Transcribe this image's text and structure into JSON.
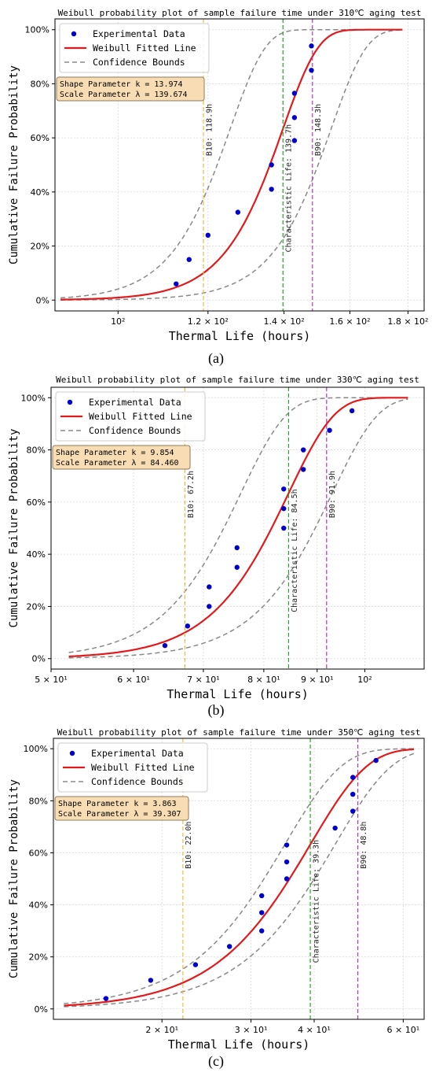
{
  "figure": {
    "labels": [
      "(a)",
      "(b)",
      "(c)"
    ]
  },
  "legend": {
    "experimental": "Experimental Data",
    "fitted": "Weibull Fitted Line",
    "bounds": "Confidence Bounds"
  },
  "colors": {
    "points": "#0000cc",
    "fit": "#e31a1c",
    "bounds": "#888888",
    "b10": "#f5b942",
    "char": "#2ca02c",
    "b90": "#c030c0",
    "param_box": "#f8ddb4"
  },
  "chart_data": [
    {
      "type": "scatter",
      "title": "Weibull probability plot of sample failure time under 310℃ aging test",
      "xlabel": "Thermal Life (hours)",
      "ylabel": "Cumulative Failure Probability",
      "x_scale": "log",
      "xlim": [
        88,
        186
      ],
      "ylim": [
        -0.04,
        1.04
      ],
      "xticks": [
        100,
        120,
        140,
        160,
        180
      ],
      "xtick_labels": [
        "10²",
        "1.2 × 10²",
        "1.4 × 10²",
        "1.6 × 10²",
        "1.8 × 10²"
      ],
      "yticks": [
        0,
        0.2,
        0.4,
        0.6,
        0.8,
        1.0
      ],
      "ytick_labels": [
        "0%",
        "20%",
        "40%",
        "60%",
        "80%",
        "100%"
      ],
      "grid": true,
      "legend_position": "top-left",
      "points": [
        {
          "x": 112.5,
          "y": 0.06
        },
        {
          "x": 115.5,
          "y": 0.15
        },
        {
          "x": 120.0,
          "y": 0.24
        },
        {
          "x": 127.5,
          "y": 0.325
        },
        {
          "x": 136.5,
          "y": 0.41
        },
        {
          "x": 136.5,
          "y": 0.5
        },
        {
          "x": 143.0,
          "y": 0.59
        },
        {
          "x": 143.0,
          "y": 0.675
        },
        {
          "x": 143.0,
          "y": 0.765
        },
        {
          "x": 148.0,
          "y": 0.85
        },
        {
          "x": 148.0,
          "y": 0.94
        }
      ],
      "shape_k": 13.974,
      "scale_lambda": 139.674,
      "fit_x_range": [
        89,
        178
      ],
      "bounds_scale": [
        125.5,
        154.0
      ],
      "param_lines": [
        "Shape Parameter k = 13.974",
        "Scale Parameter  λ = 139.674"
      ],
      "vlines": [
        {
          "kind": "b10",
          "x": 118.9,
          "label": "B10: 118.9h"
        },
        {
          "kind": "char",
          "x": 139.7,
          "label": "Characteristic Life: 139.7h"
        },
        {
          "kind": "b90",
          "x": 148.3,
          "label": "B90: 148.3h"
        }
      ]
    },
    {
      "type": "scatter",
      "title": "Weibull probability plot of sample failure time under 330℃ aging test",
      "xlabel": "Thermal Life (hours)",
      "ylabel": "Cumulative Failure Probability",
      "x_scale": "log",
      "xlim": [
        50,
        114
      ],
      "ylim": [
        -0.04,
        1.04
      ],
      "xticks": [
        50,
        60,
        70,
        80,
        90,
        100
      ],
      "xtick_labels": [
        "5 × 10¹",
        "6 × 10¹",
        "7 × 10¹",
        "8 × 10¹",
        "9 × 10¹",
        "10²"
      ],
      "yticks": [
        0,
        0.2,
        0.4,
        0.6,
        0.8,
        1.0
      ],
      "ytick_labels": [
        "0%",
        "20%",
        "40%",
        "60%",
        "80%",
        "100%"
      ],
      "grid": true,
      "legend_position": "top-left",
      "points": [
        {
          "x": 64.3,
          "y": 0.05
        },
        {
          "x": 67.6,
          "y": 0.125
        },
        {
          "x": 70.9,
          "y": 0.2
        },
        {
          "x": 70.9,
          "y": 0.275
        },
        {
          "x": 75.4,
          "y": 0.35
        },
        {
          "x": 75.4,
          "y": 0.425
        },
        {
          "x": 83.6,
          "y": 0.5
        },
        {
          "x": 83.6,
          "y": 0.575
        },
        {
          "x": 83.6,
          "y": 0.65
        },
        {
          "x": 87.3,
          "y": 0.725
        },
        {
          "x": 87.3,
          "y": 0.8
        },
        {
          "x": 92.5,
          "y": 0.875
        },
        {
          "x": 97.2,
          "y": 0.95
        }
      ],
      "shape_k": 9.854,
      "scale_lambda": 84.46,
      "fit_x_range": [
        52,
        110
      ],
      "bounds_scale": [
        76.0,
        93.0
      ],
      "param_lines": [
        "Shape Parameter k = 9.854",
        "Scale Parameter  λ = 84.460"
      ],
      "vlines": [
        {
          "kind": "b10",
          "x": 67.2,
          "label": "B10: 67.2h"
        },
        {
          "kind": "char",
          "x": 84.5,
          "label": "Characteristic Life: 84.5h"
        },
        {
          "kind": "b90",
          "x": 91.9,
          "label": "B90: 91.9h"
        }
      ]
    },
    {
      "type": "scatter",
      "title": "Weibull probability plot of sample failure time under 350℃ aging test",
      "xlabel": "Thermal Life (hours)",
      "ylabel": "Cumulative Failure Probability",
      "x_scale": "log",
      "xlim": [
        12.2,
        66
      ],
      "ylim": [
        -0.04,
        1.04
      ],
      "xticks": [
        20,
        30,
        40,
        60
      ],
      "xtick_labels": [
        "2 × 10¹",
        "3 × 10¹",
        "4 × 10¹",
        "6 × 10¹"
      ],
      "yticks": [
        0,
        0.2,
        0.4,
        0.6,
        0.8,
        1.0
      ],
      "ytick_labels": [
        "0%",
        "20%",
        "40%",
        "60%",
        "80%",
        "100%"
      ],
      "grid": true,
      "legend_position": "top-left",
      "points": [
        {
          "x": 15.5,
          "y": 0.04
        },
        {
          "x": 19.0,
          "y": 0.11
        },
        {
          "x": 23.3,
          "y": 0.17
        },
        {
          "x": 27.2,
          "y": 0.24
        },
        {
          "x": 31.5,
          "y": 0.3
        },
        {
          "x": 31.5,
          "y": 0.37
        },
        {
          "x": 31.5,
          "y": 0.435
        },
        {
          "x": 35.3,
          "y": 0.5
        },
        {
          "x": 35.3,
          "y": 0.565
        },
        {
          "x": 35.3,
          "y": 0.63
        },
        {
          "x": 44.0,
          "y": 0.695
        },
        {
          "x": 47.7,
          "y": 0.76
        },
        {
          "x": 47.7,
          "y": 0.825
        },
        {
          "x": 47.7,
          "y": 0.89
        },
        {
          "x": 53.0,
          "y": 0.955
        }
      ],
      "shape_k": 3.863,
      "scale_lambda": 39.307,
      "fit_x_range": [
        12.8,
        63
      ],
      "bounds_scale": [
        35.0,
        44.0
      ],
      "param_lines": [
        "Shape Parameter k = 3.863",
        "Scale Parameter  λ = 39.307"
      ],
      "vlines": [
        {
          "kind": "b10",
          "x": 22.0,
          "label": "B10: 22.0h"
        },
        {
          "kind": "char",
          "x": 39.3,
          "label": "Characteristic Life: 39.3h"
        },
        {
          "kind": "b90",
          "x": 48.8,
          "label": "B90: 48.8h"
        }
      ]
    }
  ]
}
